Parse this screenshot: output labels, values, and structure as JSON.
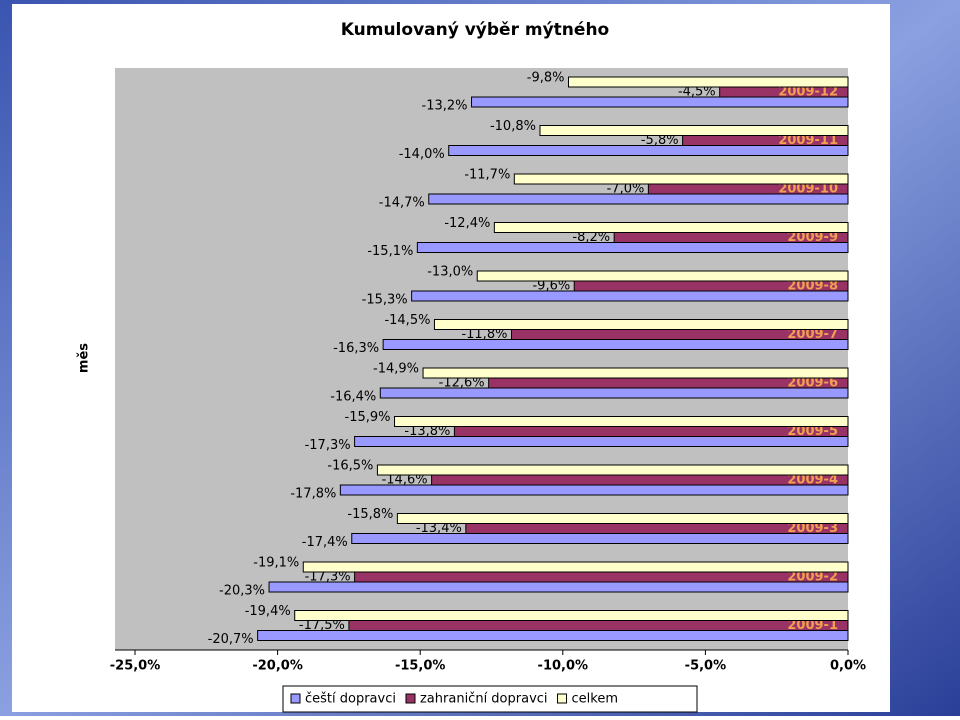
{
  "chart_data": {
    "type": "hbar",
    "title": "Kumulovaný výběr mýtného",
    "y_label": "měs",
    "categories": [
      "2009-12",
      "2009-11",
      "2009-10",
      "2009-9",
      "2009-8",
      "2009-7",
      "2009-6",
      "2009-5",
      "2009-4",
      "2009-3",
      "2009-2",
      "2009-1"
    ],
    "series": [
      {
        "name": "čeští dopravci",
        "color": "#9999ff",
        "values": [
          -13.2,
          -14.0,
          -14.7,
          -15.1,
          -15.3,
          -16.3,
          -16.4,
          -17.3,
          -17.8,
          -17.4,
          -20.3,
          -20.7
        ],
        "value_labels": [
          "-13,2%",
          "-14,0%",
          "-14,7%",
          "-15,1%",
          "-15,3%",
          "-16,3%",
          "-16,4%",
          "-17,3%",
          "-17,8%",
          "-17,4%",
          "-20,3%",
          "-20,7%"
        ]
      },
      {
        "name": "zahraniční dopravci",
        "color": "#993366",
        "values": [
          -4.5,
          -5.8,
          -7.0,
          -8.2,
          -9.6,
          -11.8,
          -12.6,
          -13.8,
          -14.6,
          -13.4,
          -17.3,
          -17.5
        ],
        "value_labels": [
          "-4,5%",
          "-5,8%",
          "-7,0%",
          "-8,2%",
          "-9,6%",
          "-11,8%",
          "-12,6%",
          "-13,8%",
          "-14,6%",
          "-13,4%",
          "-17,3%",
          "-17,5%"
        ]
      },
      {
        "name": "celkem",
        "color": "#ffffcc",
        "values": [
          -9.8,
          -10.8,
          -11.7,
          -12.4,
          -13.0,
          -14.5,
          -14.9,
          -15.9,
          -16.5,
          -15.8,
          -19.1,
          -19.4
        ],
        "value_labels": [
          "-9,8%",
          "-10,8%",
          "-11,7%",
          "-12,4%",
          "-13,0%",
          "-14,5%",
          "-14,9%",
          "-15,9%",
          "-16,5%",
          "-15,8%",
          "-19,1%",
          "-19,4%"
        ]
      }
    ],
    "xlim": [
      -25,
      0
    ],
    "xticks": [
      {
        "value": -25,
        "label": "-25,0%"
      },
      {
        "value": -20,
        "label": "-20,0%"
      },
      {
        "value": -15,
        "label": "-15,0%"
      },
      {
        "value": -10,
        "label": "-10,0%"
      },
      {
        "value": -5,
        "label": "-5,0%"
      },
      {
        "value": 0,
        "label": "0,0%"
      }
    ],
    "legend": "bottom"
  }
}
